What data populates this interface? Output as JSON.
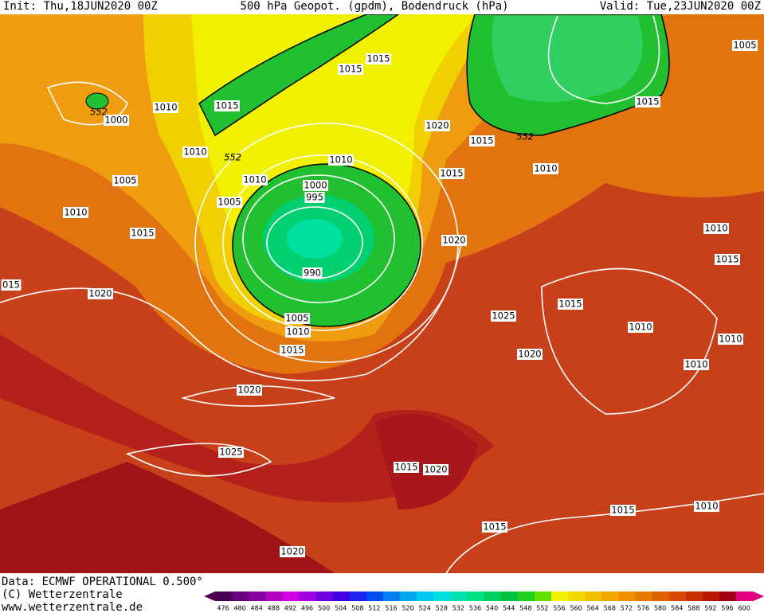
{
  "header": {
    "init": "Init: Thu,18JUN2020 00Z",
    "title": "500 hPa Geopot. (gpdm), Bodendruck (hPa)",
    "valid": "Valid: Tue,23JUN2020 00Z"
  },
  "map": {
    "isobar_labels": [
      "1005",
      "1015",
      "1015",
      "1010",
      "1015",
      "1000",
      "552",
      "1020",
      "1015",
      "552",
      "1015",
      "1010",
      "552",
      "1010",
      "1010",
      "1005",
      "1010",
      "1015",
      "1000",
      "995",
      "1005",
      "1010",
      "1015",
      "1020",
      "1010",
      "1015",
      "990",
      "015",
      "1020",
      "1015",
      "1025",
      "1005",
      "1010",
      "1010",
      "1010",
      "1015",
      "1020",
      "1010",
      "1020",
      "1025",
      "1015",
      "1020",
      "1010",
      "1015",
      "1015",
      "1020"
    ]
  },
  "footer": {
    "data": "Data: ECMWF OPERATIONAL 0.500°",
    "copyright": "(C) Wetterzentrale",
    "url": "www.wetterzentrale.de"
  },
  "colorbar": {
    "labels": [
      "476",
      "480",
      "484",
      "488",
      "492",
      "496",
      "500",
      "504",
      "508",
      "512",
      "516",
      "520",
      "524",
      "528",
      "532",
      "536",
      "540",
      "544",
      "548",
      "552",
      "556",
      "560",
      "564",
      "568",
      "572",
      "576",
      "580",
      "584",
      "588",
      "592",
      "596",
      "600"
    ],
    "colors": [
      "#4b0050",
      "#6a0080",
      "#8a00a0",
      "#b000c0",
      "#d000e0",
      "#a000e0",
      "#7000e0",
      "#4000e0",
      "#2020f0",
      "#0050f0",
      "#0080f0",
      "#00a8f0",
      "#00c8f0",
      "#00e0e0",
      "#00e0b0",
      "#00e080",
      "#00d060",
      "#00c040",
      "#20d020",
      "#60e000",
      "#f0f000",
      "#f0d800",
      "#f0c000",
      "#f0a800",
      "#f09000",
      "#e87800",
      "#e06000",
      "#d84800",
      "#c83000",
      "#b81800",
      "#a00010",
      "#e00080"
    ]
  }
}
